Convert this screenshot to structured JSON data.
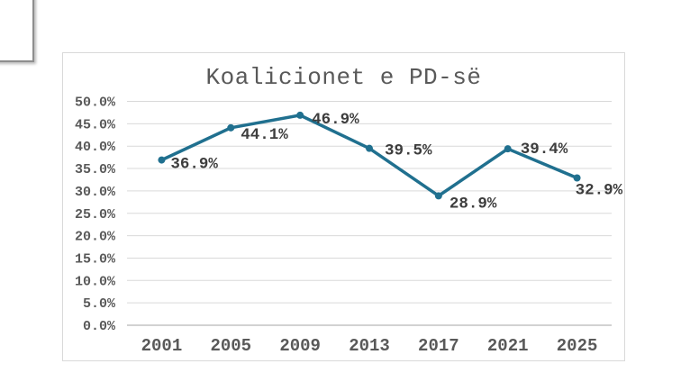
{
  "window": {
    "background": "#ffffff"
  },
  "chart": {
    "panel": {
      "background": "#ffffff",
      "border_color": "#d9d9d9"
    },
    "colors": {
      "line": "#20708f",
      "marker": "#20708f",
      "gridline": "#d9d9d9",
      "axis_line": "#c3c3c3",
      "tick_label": "#595959",
      "x_label": "#595959",
      "data_label": "#3d3d3d",
      "title": "#595959"
    }
  },
  "chart_data": {
    "type": "line",
    "title": "Koalicionet e PD-së",
    "categories": [
      "2001",
      "2005",
      "2009",
      "2013",
      "2017",
      "2021",
      "2025"
    ],
    "series": [
      {
        "name": "Koalicionet e PD-së",
        "values": [
          36.9,
          44.1,
          46.9,
          39.5,
          28.9,
          39.4,
          32.9
        ],
        "labels": [
          "36.9%",
          "44.1%",
          "46.9%",
          "39.5%",
          "28.9%",
          "39.4%",
          "32.9%"
        ]
      }
    ],
    "y_axis": {
      "min": 0,
      "max": 50,
      "step": 5,
      "tick_labels": [
        "0.0%",
        "5.0%",
        "10.0%",
        "15.0%",
        "20.0%",
        "25.0%",
        "30.0%",
        "35.0%",
        "40.0%",
        "45.0%",
        "50.0%"
      ]
    },
    "xlabel": "",
    "ylabel": "",
    "grid": true,
    "legend": "none",
    "marker": "circle",
    "data_labels_visible": true
  }
}
